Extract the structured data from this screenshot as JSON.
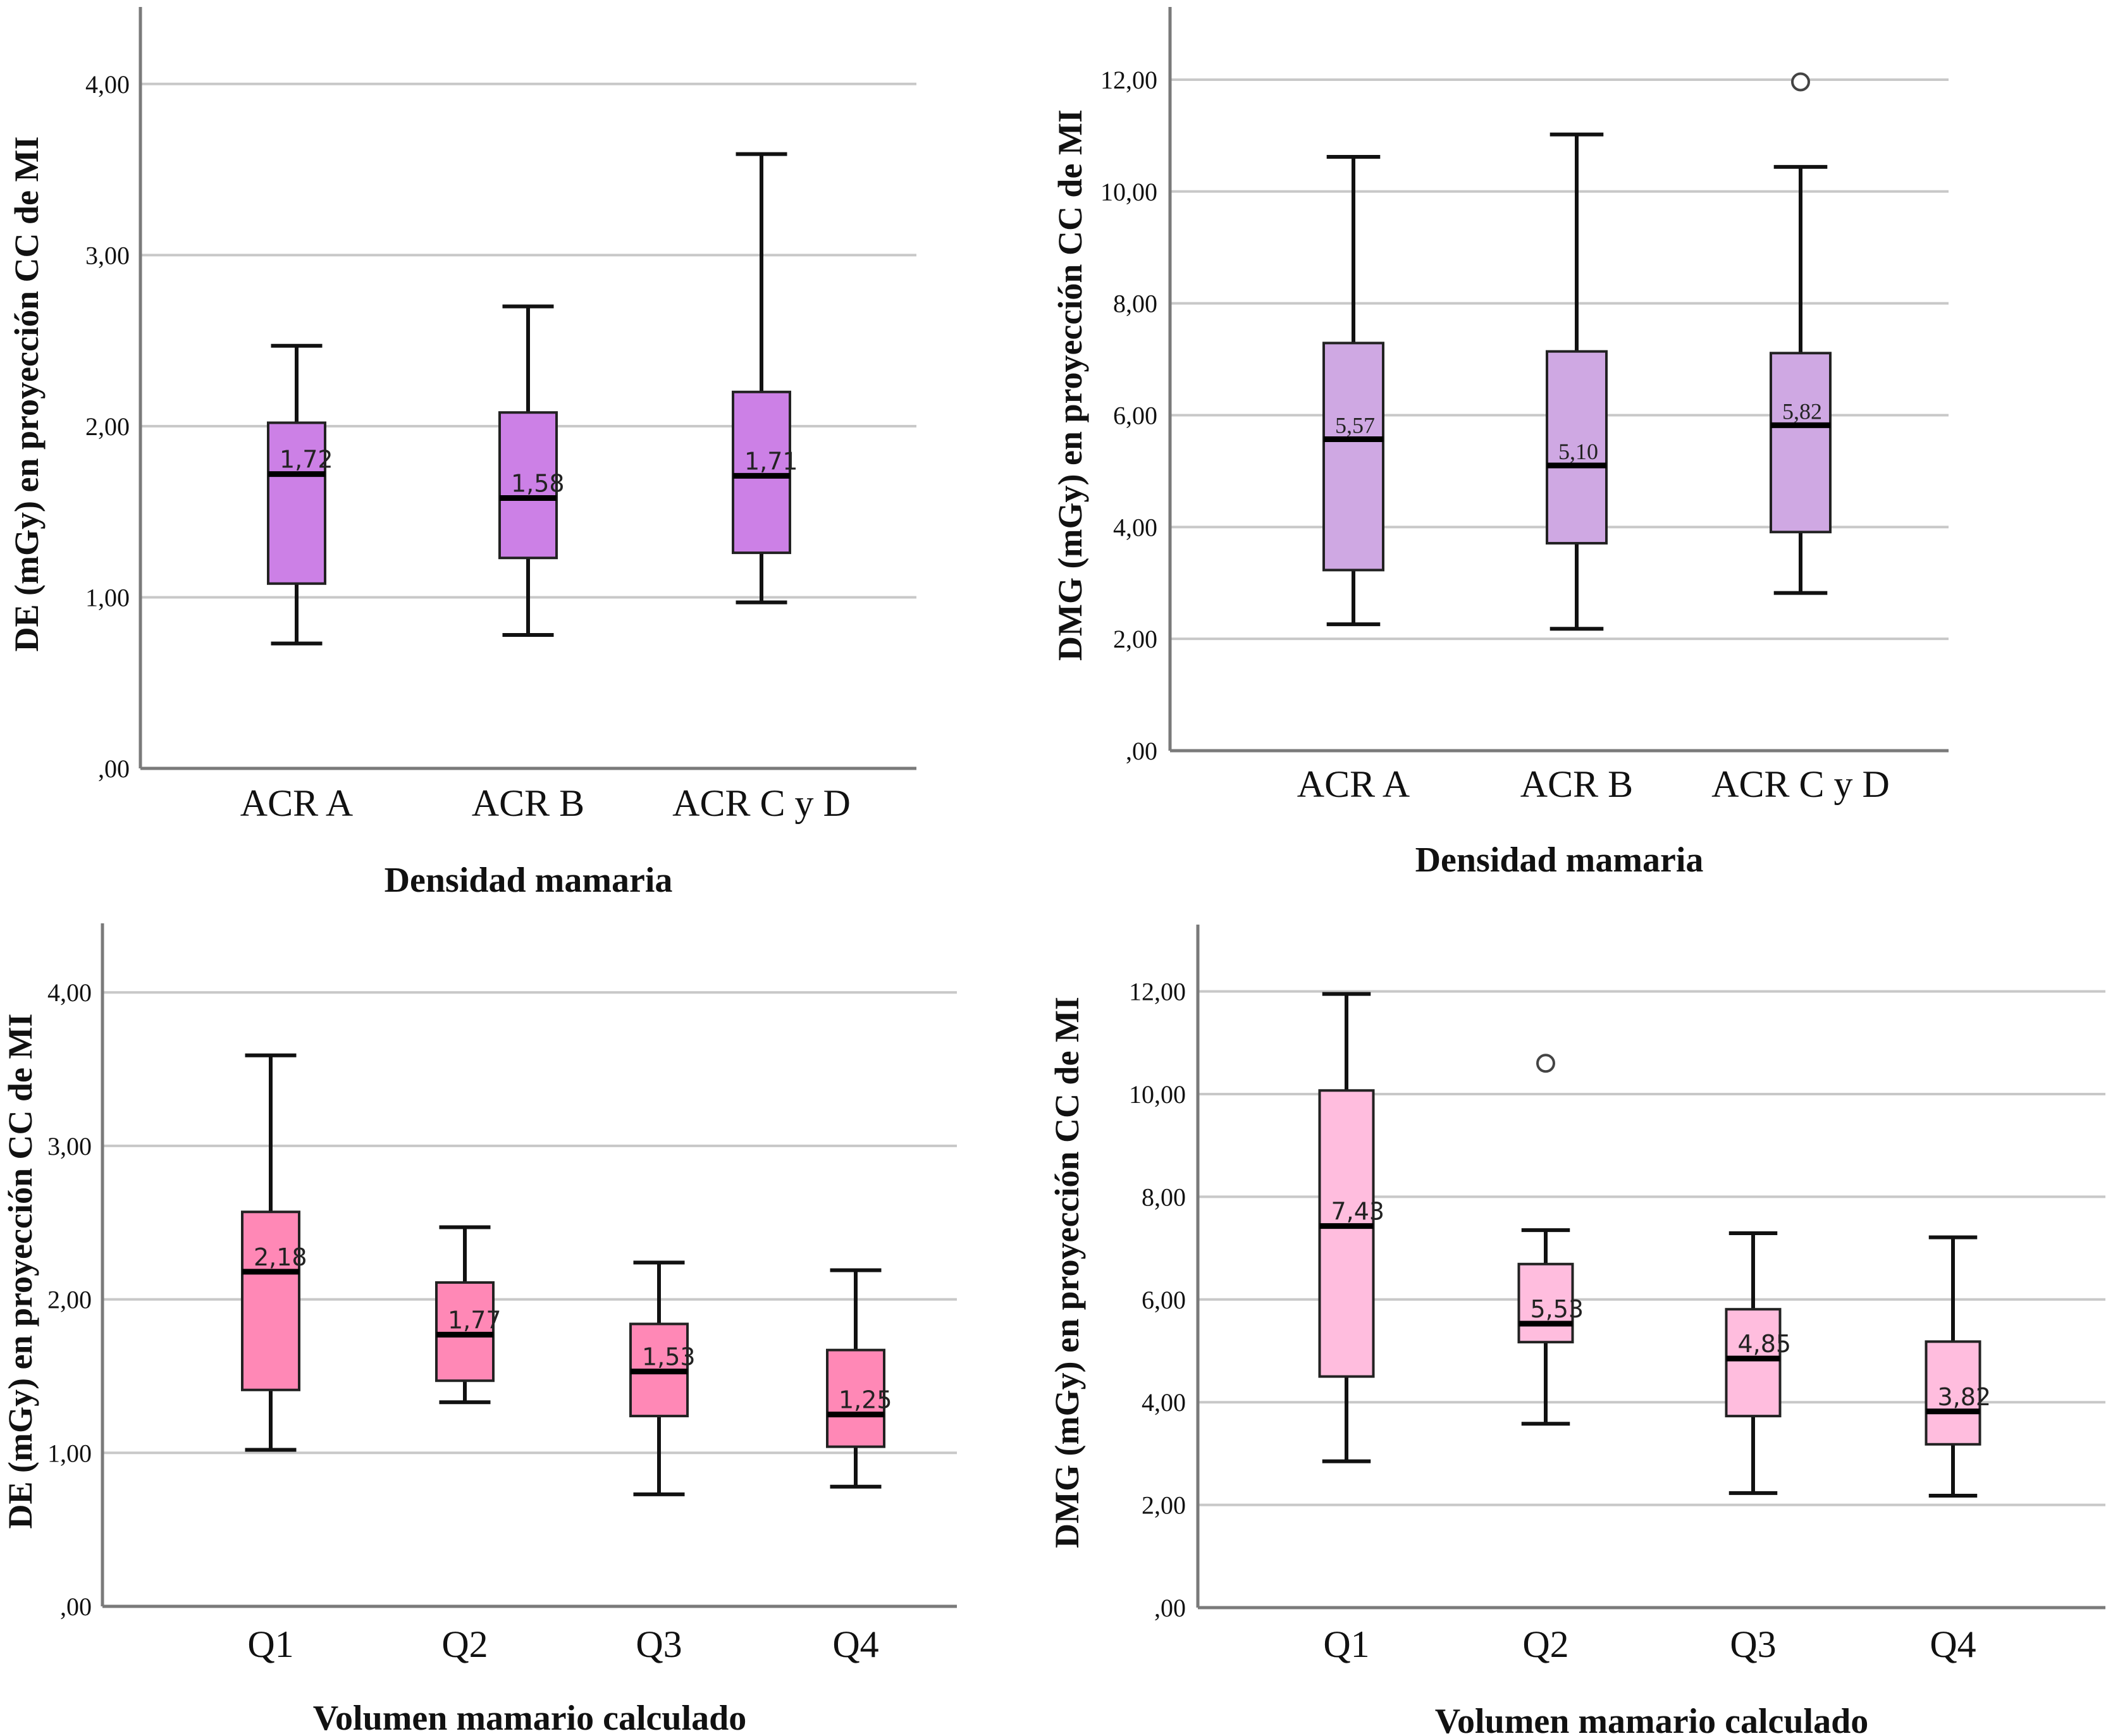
{
  "chart_data": [
    {
      "type": "boxplot",
      "id": "de-density",
      "title": "",
      "xlabel": "Densidad mamaria",
      "ylabel": "DE (mGy) en proyección CC de MI",
      "ylim": [
        0,
        4.45
      ],
      "yticks": [
        0,
        1,
        2,
        3,
        4
      ],
      "ytick_labels": [
        ",00",
        "1,00",
        "2,00",
        "3,00",
        "4,00"
      ],
      "grid": true,
      "box_color": "#CC80E6",
      "median_label_style": "sans",
      "categories": [
        "ACR A",
        "ACR B",
        "ACR C y D"
      ],
      "boxes": [
        {
          "category": "ACR A",
          "whisker_low": 0.73,
          "q1": 1.08,
          "median": 1.72,
          "q3": 2.02,
          "whisker_high": 2.47,
          "median_label": "1,72",
          "outliers": []
        },
        {
          "category": "ACR B",
          "whisker_low": 0.78,
          "q1": 1.23,
          "median": 1.58,
          "q3": 2.08,
          "whisker_high": 2.7,
          "median_label": "1,58",
          "outliers": []
        },
        {
          "category": "ACR C y D",
          "whisker_low": 0.97,
          "q1": 1.26,
          "median": 1.71,
          "q3": 2.2,
          "whisker_high": 3.59,
          "median_label": "1,71",
          "outliers": []
        }
      ]
    },
    {
      "type": "boxplot",
      "id": "dmg-density",
      "title": "",
      "xlabel": "Densidad mamaria",
      "ylabel": "DMG (mGy) en proyección CC de MI",
      "ylim": [
        0,
        13.3
      ],
      "yticks": [
        0,
        2,
        4,
        6,
        8,
        10,
        12
      ],
      "ytick_labels": [
        ",00",
        "2,00",
        "4,00",
        "6,00",
        "8,00",
        "10,00",
        "12,00"
      ],
      "grid": true,
      "box_color": "#CFA8E3",
      "median_label_style": "serif",
      "categories": [
        "ACR A",
        "ACR B",
        "ACR C y D"
      ],
      "boxes": [
        {
          "category": "ACR A",
          "whisker_low": 2.26,
          "q1": 3.23,
          "median": 5.57,
          "q3": 7.29,
          "whisker_high": 10.62,
          "median_label": "5,57",
          "outliers": []
        },
        {
          "category": "ACR B",
          "whisker_low": 2.18,
          "q1": 3.71,
          "median": 5.1,
          "q3": 7.14,
          "whisker_high": 11.02,
          "median_label": "5,10",
          "outliers": []
        },
        {
          "category": "ACR C y D",
          "whisker_low": 2.82,
          "q1": 3.91,
          "median": 5.82,
          "q3": 7.11,
          "whisker_high": 10.44,
          "median_label": "5,82",
          "outliers": [
            11.96
          ]
        }
      ]
    },
    {
      "type": "boxplot",
      "id": "de-volume",
      "title": "",
      "xlabel": "Volumen mamario calculado",
      "ylabel": "DE (mGy) en proyección CC de MI",
      "ylim": [
        0,
        4.45
      ],
      "yticks": [
        0,
        1,
        2,
        3,
        4
      ],
      "ytick_labels": [
        ",00",
        "1,00",
        "2,00",
        "3,00",
        "4,00"
      ],
      "grid": true,
      "box_color": "#FF88B6",
      "median_label_style": "sans",
      "categories": [
        "Q1",
        "Q2",
        "Q3",
        "Q4"
      ],
      "boxes": [
        {
          "category": "Q1",
          "whisker_low": 1.02,
          "q1": 1.41,
          "median": 2.18,
          "q3": 2.57,
          "whisker_high": 3.59,
          "median_label": "2,18",
          "outliers": []
        },
        {
          "category": "Q2",
          "whisker_low": 1.33,
          "q1": 1.47,
          "median": 1.77,
          "q3": 2.11,
          "whisker_high": 2.47,
          "median_label": "1,77",
          "outliers": []
        },
        {
          "category": "Q3",
          "whisker_low": 0.73,
          "q1": 1.24,
          "median": 1.53,
          "q3": 1.84,
          "whisker_high": 2.24,
          "median_label": "1,53",
          "outliers": []
        },
        {
          "category": "Q4",
          "whisker_low": 0.78,
          "q1": 1.04,
          "median": 1.25,
          "q3": 1.67,
          "whisker_high": 2.19,
          "median_label": "1,25",
          "outliers": []
        }
      ]
    },
    {
      "type": "boxplot",
      "id": "dmg-volume",
      "title": "",
      "xlabel": "Volumen mamario calculado",
      "ylabel": "DMG (mGy) en proyección CC de MI",
      "ylim": [
        0,
        13.3
      ],
      "yticks": [
        0,
        2,
        4,
        6,
        8,
        10,
        12
      ],
      "ytick_labels": [
        ",00",
        "2,00",
        "4,00",
        "6,00",
        "8,00",
        "10,00",
        "12,00"
      ],
      "grid": true,
      "box_color": "#FFBDDE",
      "median_label_style": "sans",
      "categories": [
        "Q1",
        "Q2",
        "Q3",
        "Q4"
      ],
      "boxes": [
        {
          "category": "Q1",
          "whisker_low": 2.85,
          "q1": 4.5,
          "median": 7.43,
          "q3": 10.07,
          "whisker_high": 11.95,
          "median_label": "7,43",
          "outliers": []
        },
        {
          "category": "Q2",
          "whisker_low": 3.58,
          "q1": 5.17,
          "median": 5.53,
          "q3": 6.69,
          "whisker_high": 7.35,
          "median_label": "5,53",
          "outliers": [
            10.6
          ]
        },
        {
          "category": "Q3",
          "whisker_low": 2.23,
          "q1": 3.73,
          "median": 4.85,
          "q3": 5.81,
          "whisker_high": 7.29,
          "median_label": "4,85",
          "outliers": []
        },
        {
          "category": "Q4",
          "whisker_low": 2.18,
          "q1": 3.18,
          "median": 3.82,
          "q3": 5.18,
          "whisker_high": 7.21,
          "median_label": "3,82",
          "outliers": []
        }
      ]
    }
  ]
}
